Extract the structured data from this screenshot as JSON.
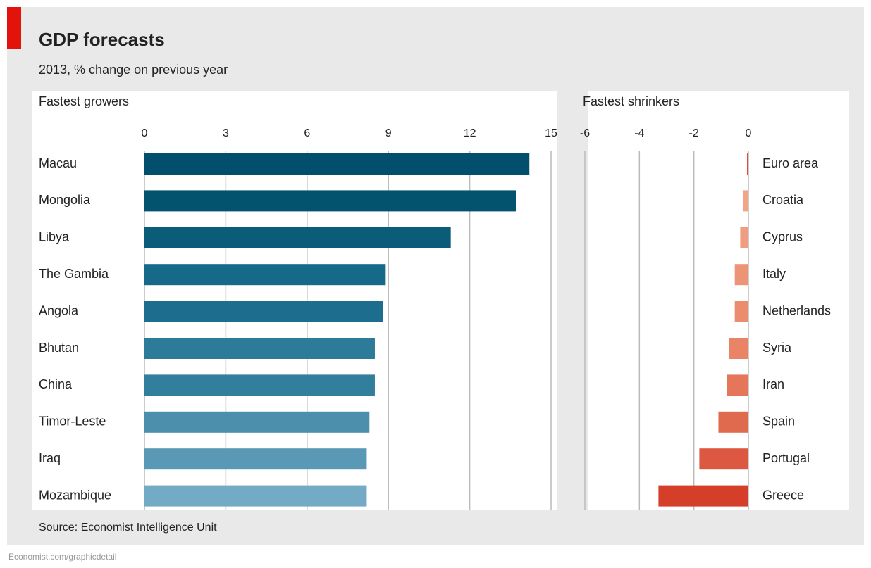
{
  "title": "GDP forecasts",
  "subtitle": "2013, % change on previous year",
  "source": "Source: Economist Intelligence Unit",
  "footer": "Economist.com/graphicdetail",
  "chart_data": [
    {
      "type": "bar",
      "title": "Fastest growers",
      "categories": [
        "Macau",
        "Mongolia",
        "Libya",
        "The Gambia",
        "Angola",
        "Bhutan",
        "China",
        "Timor-Leste",
        "Iraq",
        "Mozambique"
      ],
      "values": [
        14.2,
        13.7,
        11.3,
        8.9,
        8.8,
        8.5,
        8.5,
        8.3,
        8.2,
        8.2
      ],
      "colors": [
        "#014f6c",
        "#03536f",
        "#0b5c78",
        "#17698a",
        "#1d6e8e",
        "#2c7b99",
        "#327f9d",
        "#4b8fad",
        "#5a99b6",
        "#73abc6"
      ],
      "xlim": [
        0,
        15
      ],
      "xticks": [
        0,
        3,
        6,
        9,
        12,
        15
      ],
      "grid": true
    },
    {
      "type": "bar",
      "title": "Fastest shrinkers",
      "categories": [
        "Euro area",
        "Croatia",
        "Cyprus",
        "Italy",
        "Netherlands",
        "Syria",
        "Iran",
        "Spain",
        "Portugal",
        "Greece"
      ],
      "values": [
        -0.05,
        -0.2,
        -0.3,
        -0.5,
        -0.5,
        -0.7,
        -0.8,
        -1.1,
        -1.8,
        -3.3
      ],
      "colors": [
        "#d9422b",
        "#f2a488",
        "#f09c80",
        "#ee9476",
        "#ec8c6e",
        "#ea8466",
        "#e5765a",
        "#e06a4e",
        "#dc5840",
        "#d53f2a"
      ],
      "xlim": [
        -6,
        0
      ],
      "xticks": [
        -6,
        -4,
        -2,
        0
      ],
      "grid": true
    }
  ]
}
